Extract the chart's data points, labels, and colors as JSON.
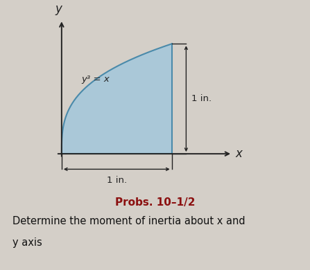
{
  "bg_color": "#d4cfc8",
  "fill_color": "#aac8d8",
  "fill_edge_color": "#4a8aaa",
  "axis_color": "#222222",
  "curve_label": "y³ = x",
  "dim_label_h": "1 in.",
  "dim_label_v": "1 in.",
  "x_label": "x",
  "y_label": "y",
  "title": "Probs. 10–1/2",
  "title_color": "#8B1010",
  "subtitle_line1": "Determine the moment of inertia about x and",
  "subtitle_line2": "y axis",
  "subtitle_color": "#111111",
  "plot_xlim": [
    -0.18,
    1.65
  ],
  "plot_ylim": [
    -0.32,
    1.3
  ]
}
